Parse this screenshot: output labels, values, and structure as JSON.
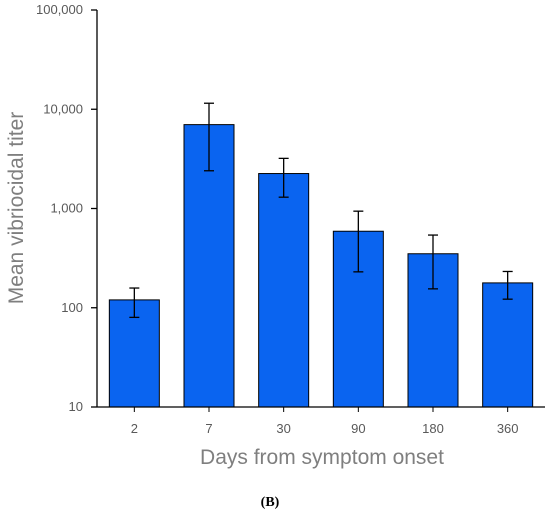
{
  "chart_data": {
    "type": "bar",
    "categories": [
      "2",
      "7",
      "30",
      "90",
      "180",
      "360"
    ],
    "values": [
      120,
      7000,
      2250,
      590,
      350,
      178
    ],
    "error_low": [
      80,
      2400,
      1300,
      230,
      155,
      122
    ],
    "error_high": [
      158,
      11500,
      3200,
      940,
      540,
      232
    ],
    "xlabel": "Days from symptom onset",
    "ylabel": "Mean vibriocidal titer",
    "yscale": "log",
    "ylim": [
      10,
      100000
    ],
    "yticks": [
      10,
      100,
      1000,
      10000,
      100000
    ],
    "ytick_labels": [
      "10",
      "100",
      "1,000",
      "10,000",
      "100,000"
    ],
    "grid": false,
    "panel_label": "(B)",
    "colors": {
      "bar": "#0a64f0",
      "bar_edge": "#000000",
      "axis": "#000000",
      "tick_text": "#595959",
      "axis_title": "#7f7f7f"
    }
  }
}
